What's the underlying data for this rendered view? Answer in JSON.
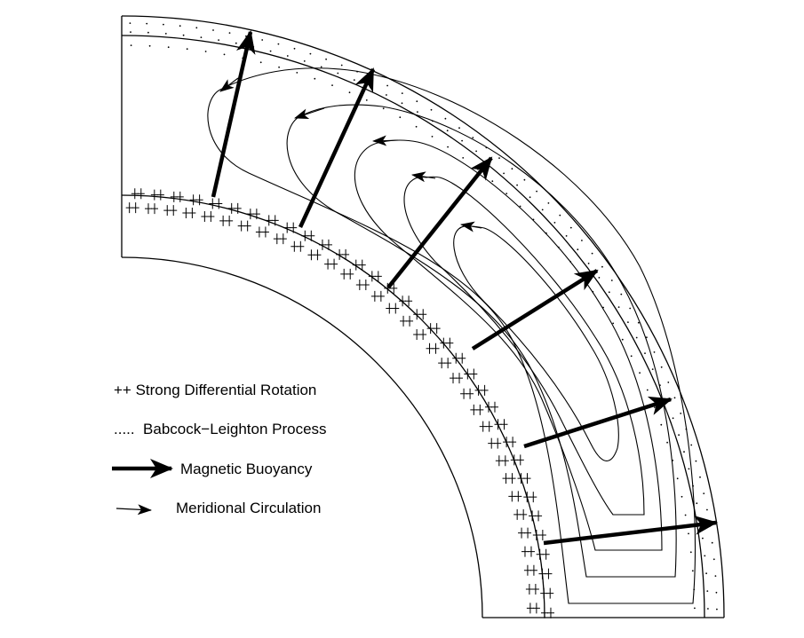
{
  "legend": {
    "differential_rotation": "++ Strong Differential Rotation",
    "babcock_leighton": ".....  Babcock−Leighton Process",
    "magnetic_buoyancy": "Magnetic Buoyancy",
    "meridional_circulation": "Meridional Circulation"
  },
  "colors": {
    "ink": "#000000",
    "background": "#ffffff"
  },
  "symbols": {
    "rotation_marker": "++",
    "bl_marker": "dots"
  }
}
